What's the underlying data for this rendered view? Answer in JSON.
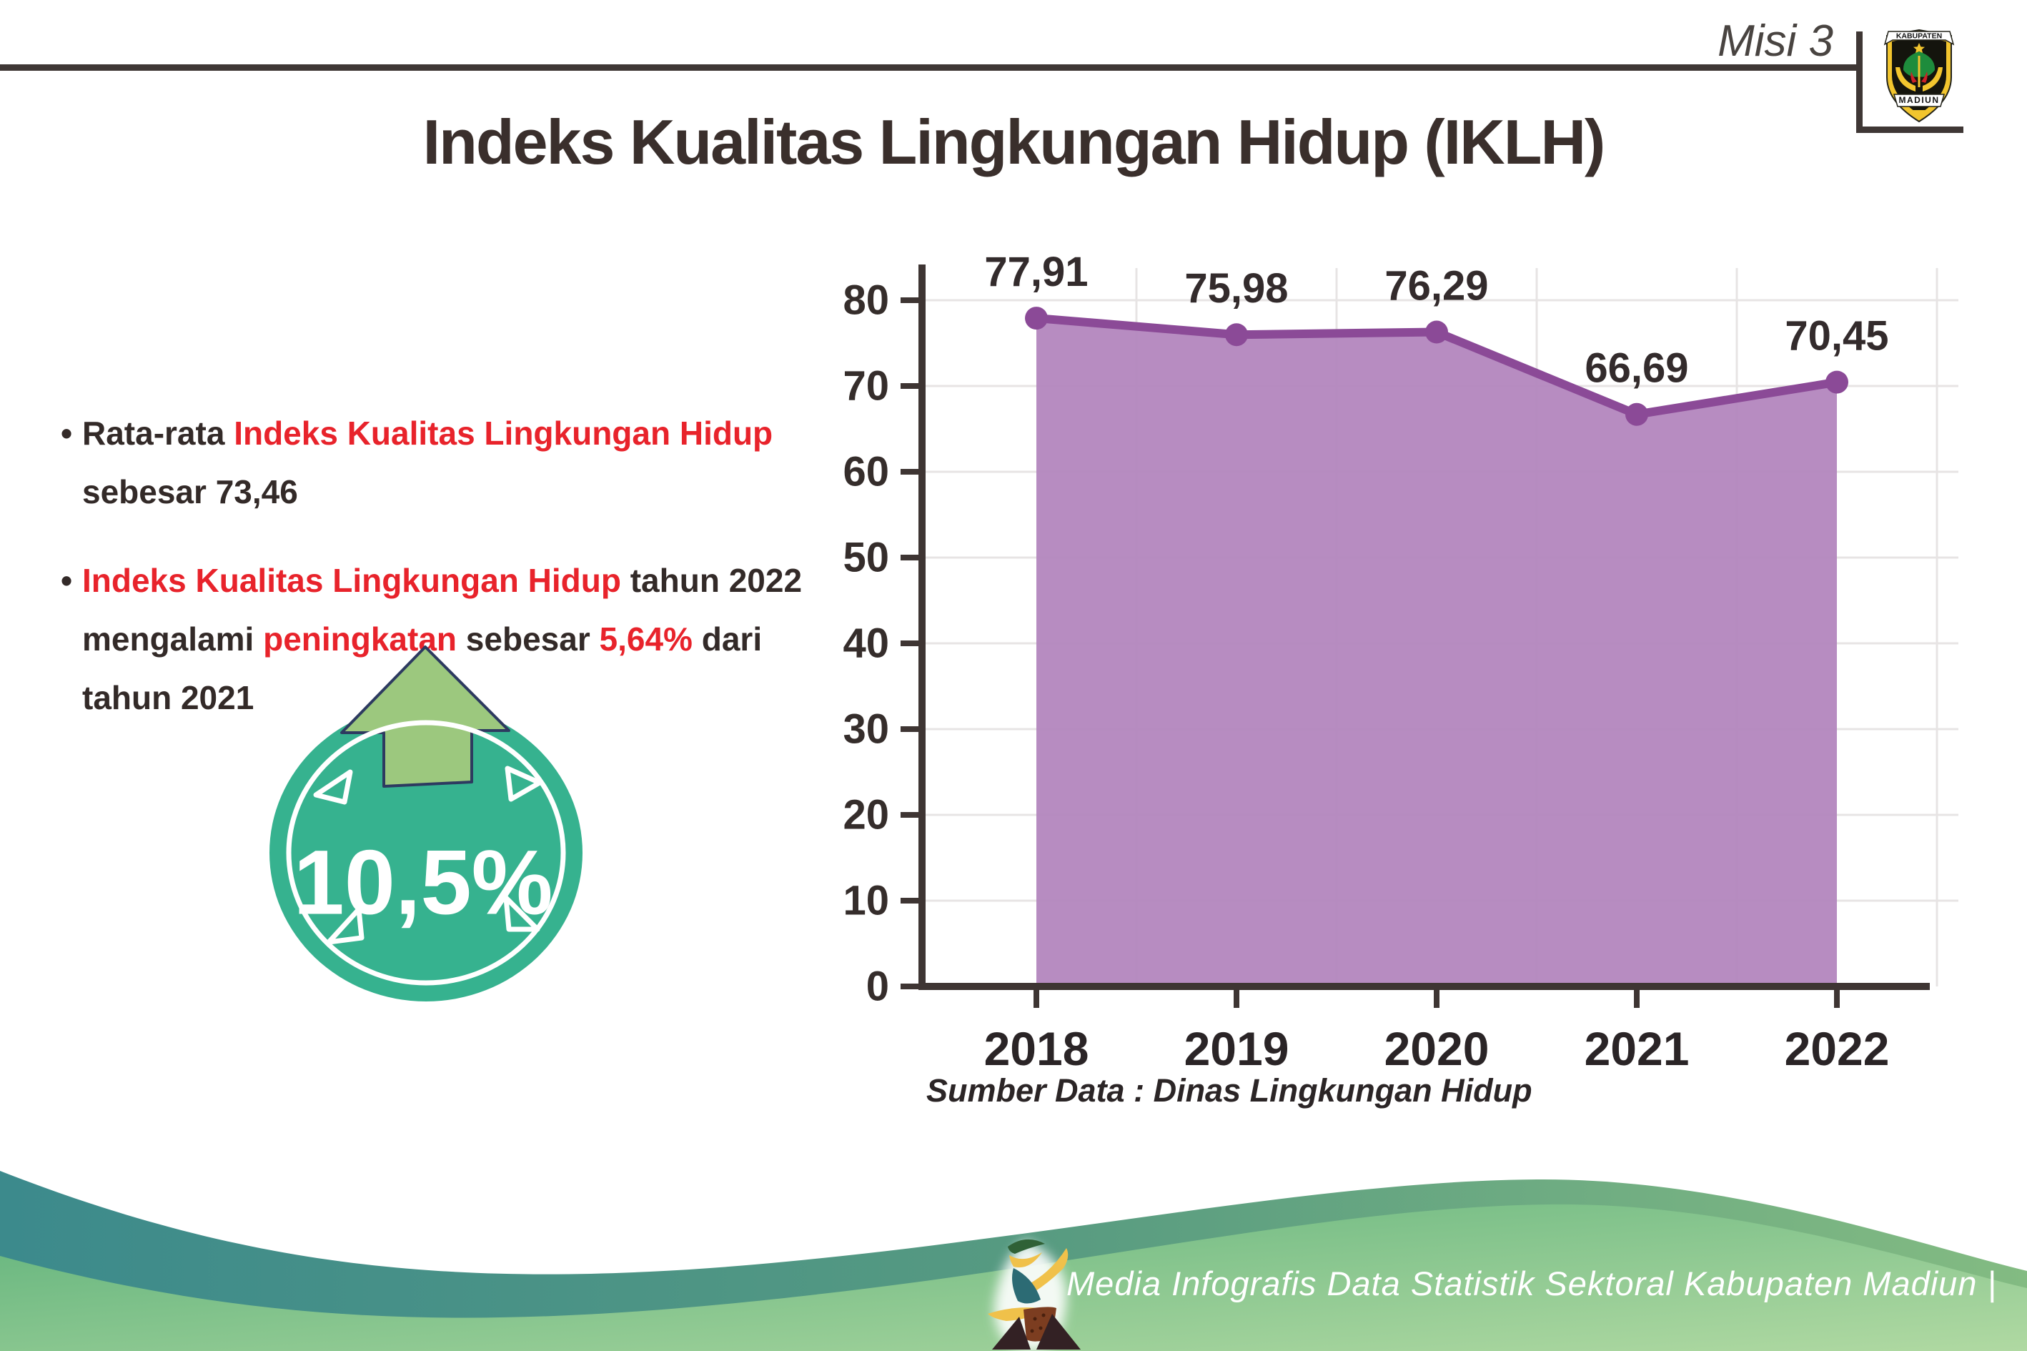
{
  "header": {
    "misi_label": "Misi 3",
    "title": "Indeks Kualitas Lingkungan Hidup (IKLH)",
    "logo": {
      "top_banner": "KABUPATEN",
      "bottom_banner": "MADIUN"
    }
  },
  "bullets": [
    {
      "lines": [
        [
          {
            "t": "Rata-rata ",
            "c": "dark"
          },
          {
            "t": "Indeks Kualitas Lingkungan Hidup",
            "c": "red"
          }
        ],
        [
          {
            "t": "sebesar 73,46",
            "c": "dark"
          }
        ]
      ]
    },
    {
      "lines": [
        [
          {
            "t": "Indeks Kualitas Lingkungan Hidup",
            "c": "red"
          },
          {
            "t": " tahun 2022",
            "c": "dark"
          }
        ],
        [
          {
            "t": "mengalami ",
            "c": "dark"
          },
          {
            "t": "peningkatan",
            "c": "red"
          },
          {
            "t": " sebesar ",
            "c": "dark"
          },
          {
            "t": "5,64%",
            "c": "red"
          },
          {
            "t": " dari",
            "c": "dark"
          }
        ],
        [
          {
            "t": "tahun 2021",
            "c": "dark"
          }
        ]
      ]
    }
  ],
  "badge": {
    "value": "10,5%",
    "direction": "up"
  },
  "chart_data": {
    "type": "area",
    "title": "Indeks Kualitas Lingkungan Hidup (IKLH)",
    "categories": [
      "2018",
      "2019",
      "2020",
      "2021",
      "2022"
    ],
    "series": [
      {
        "name": "IKLH",
        "values": [
          77.91,
          75.98,
          76.29,
          66.69,
          70.45
        ]
      }
    ],
    "value_labels": [
      "77,91",
      "75,98",
      "76,29",
      "66,69",
      "70,45"
    ],
    "xlabel": "",
    "ylabel": "",
    "ylim": [
      0,
      80
    ],
    "ytick_step": 10,
    "grid": true,
    "legend": "none",
    "area_color": "#b386be",
    "line_color": "#8b4a97",
    "axis_color": "#3e3533",
    "grid_color": "#e7e4e4"
  },
  "source_note": "Sumber Data : Dinas Lingkungan Hidup",
  "footer": {
    "caption": "Media Infografis Data Statistik Sektoral Kabupaten Madiun |"
  },
  "colors": {
    "accent_red": "#e8232b",
    "text_dark": "#332a28",
    "badge_teal": "#36b28f",
    "arrow_green": "#9cc87e",
    "arrow_outline_navy": "#2d3a60",
    "footer_teal": "#3c8a8c",
    "footer_green_light": "#8fc98d"
  }
}
